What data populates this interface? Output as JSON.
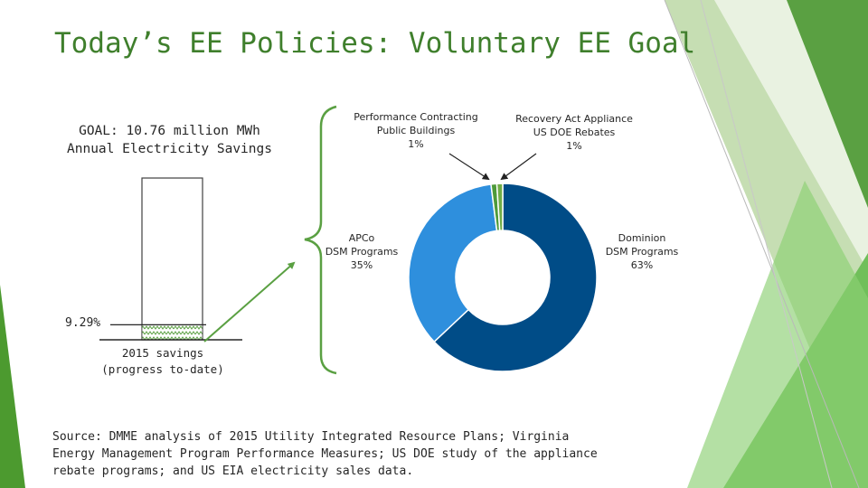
{
  "title": "Today’s EE Policies: Voluntary EE Goal",
  "goal_text": "GOAL: 10.76 million MWh Annual Electricity Savings",
  "progress_label": "9.29%",
  "savings_label": "2015 savings (progress to-date)",
  "source_text": "Source: DMME analysis of 2015 Utility Integrated Resource Plans; Virginia Energy Management Program Performance Measures; US DOE study of the appliance rebate programs; and US EIA electricity sales data.",
  "colors": {
    "title": "#3f7f2c",
    "dominion": "#004c87",
    "apco": "#2e8fdd",
    "small": "#4e9a3a",
    "green": "#70ad47"
  },
  "chart_data": [
    {
      "type": "bar",
      "categories": [
        "2015 savings"
      ],
      "values": [
        9.29
      ],
      "ylim": [
        0,
        100
      ],
      "annotations": [
        "9.29%",
        "2015 savings (progress to-date)"
      ]
    },
    {
      "type": "pie",
      "slices": [
        {
          "name": "Dominion DSM Programs",
          "label_lines": [
            "Dominion",
            "DSM Programs",
            "63%"
          ],
          "value": 63,
          "color": "#004c87"
        },
        {
          "name": "APCo DSM Programs",
          "label_lines": [
            "APCo",
            "DSM Programs",
            "35%"
          ],
          "value": 35,
          "color": "#2e8fdd"
        },
        {
          "name": "Performance Contracting Public Buildings",
          "label_lines": [
            "Performance Contracting",
            "Public Buildings",
            "1%"
          ],
          "value": 1,
          "color": "#4e9a3a"
        },
        {
          "name": "Recovery Act Appliance US DOE Rebates",
          "label_lines": [
            "Recovery Act Appliance",
            "US DOE Rebates",
            "1%"
          ],
          "value": 1,
          "color": "#70ad47"
        }
      ]
    }
  ]
}
